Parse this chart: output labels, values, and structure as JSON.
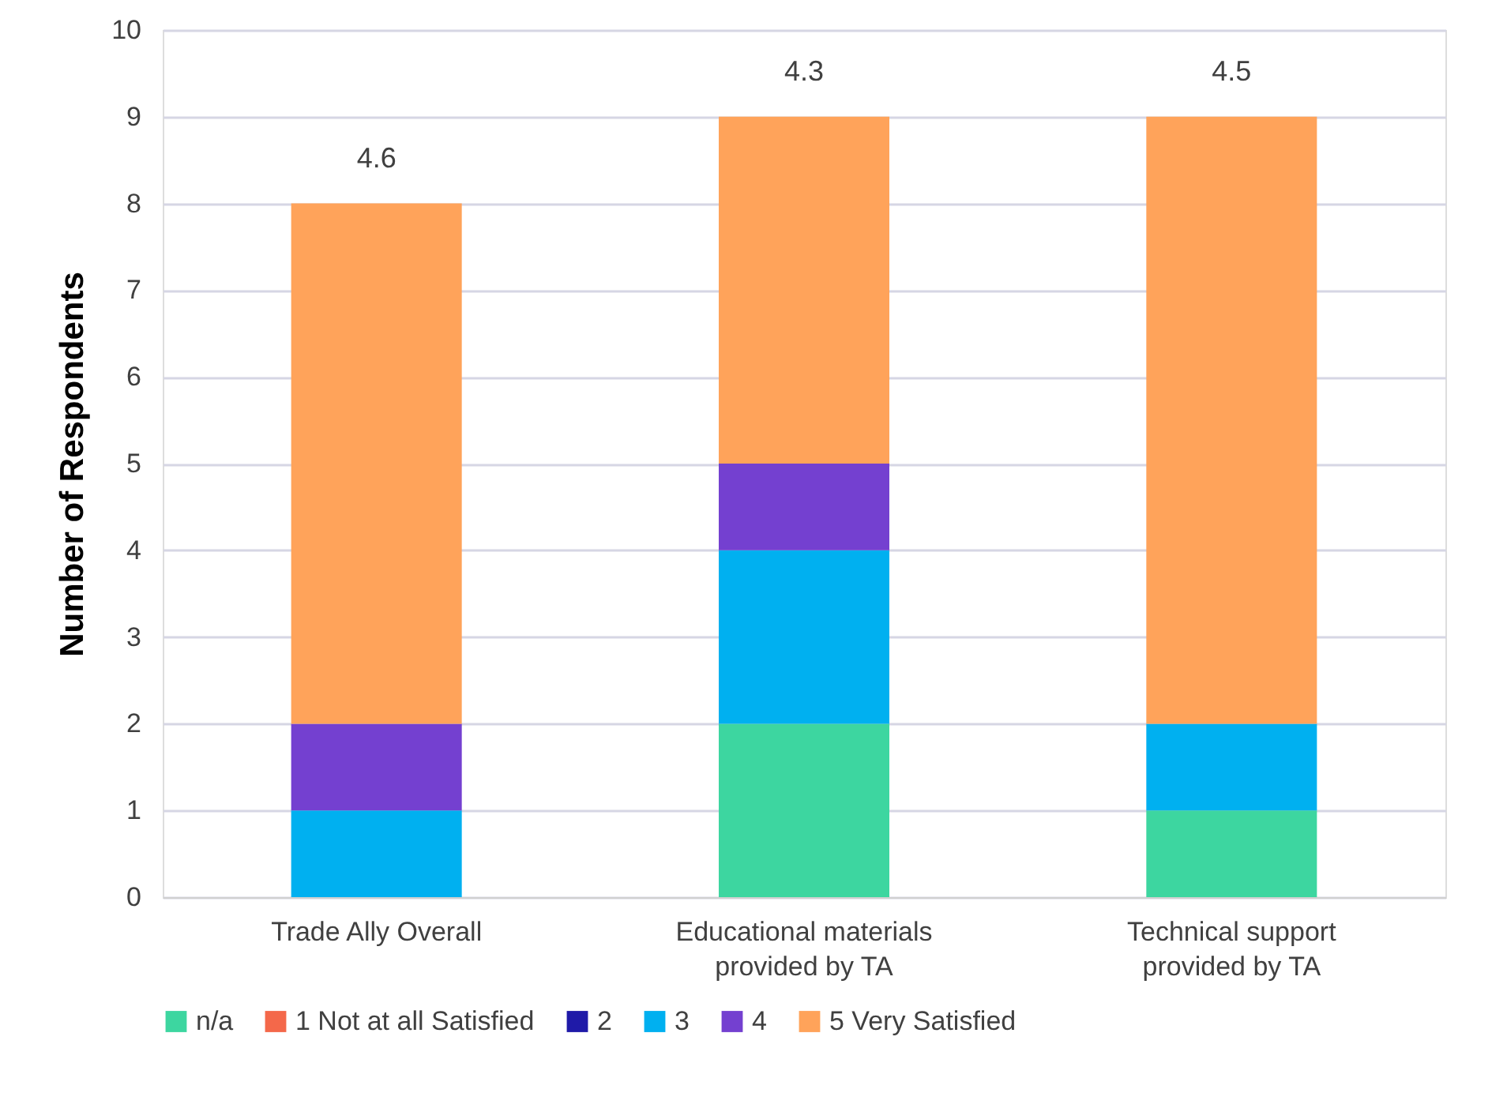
{
  "chart_data": {
    "type": "bar",
    "stacked": true,
    "ylabel": "Number of Respondents",
    "categories": [
      "Trade Ally Overall",
      "Educational materials provided by TA",
      "Technical support provided by TA"
    ],
    "series": [
      {
        "name": "n/a",
        "color": "#3dd6a0",
        "values": [
          0,
          2,
          1
        ]
      },
      {
        "name": "1 Not at all Satisfied",
        "color": "#f4684a",
        "values": [
          0,
          0,
          0
        ]
      },
      {
        "name": "2",
        "color": "#1f1aa8",
        "values": [
          0,
          0,
          0
        ]
      },
      {
        "name": "3",
        "color": "#00b0f0",
        "values": [
          1,
          2,
          1
        ]
      },
      {
        "name": "4",
        "color": "#7440d0",
        "values": [
          1,
          1,
          0
        ]
      },
      {
        "name": "5 Very Satisfied",
        "color": "#ffa35a",
        "values": [
          6,
          4,
          7
        ]
      }
    ],
    "annotations": [
      {
        "text": "4.6",
        "x": "Trade Ally Overall",
        "y": 8
      },
      {
        "text": "4.3",
        "x": "Educational materials provided by TA",
        "y": 9
      },
      {
        "text": "4.5",
        "x": "Technical support provided by TA",
        "y": 9
      }
    ],
    "ylim": [
      0,
      10
    ],
    "yticks": [
      0,
      1,
      2,
      3,
      4,
      5,
      6,
      7,
      8,
      9,
      10
    ],
    "grid": "y",
    "legend": "bottom"
  }
}
